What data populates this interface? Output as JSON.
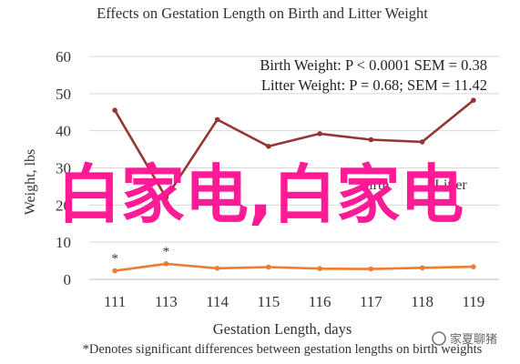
{
  "chart_data": {
    "type": "line",
    "title": "Effects on Gestation Length on Birth and Litter Weight",
    "xlabel": "Gestation Length, days",
    "ylabel": "Weight, lbs",
    "categories": [
      "111",
      "113",
      "114",
      "115",
      "116",
      "117",
      "118",
      "119"
    ],
    "ylim": [
      0,
      60
    ],
    "yticks": [
      "0",
      "10",
      "20",
      "30",
      "40",
      "50",
      "60"
    ],
    "grid": "horizontal",
    "annotations": [
      "Birth Weight: P < 0.0001 SEM = 0.38",
      "Litter Weight: P = 0.68; SEM = 11.42"
    ],
    "footnote": "*Denotes significant differences between gestation lengths on birth weights",
    "significance_markers": [
      {
        "category": "111",
        "label": "*"
      },
      {
        "category": "113",
        "label": "*"
      }
    ],
    "series": [
      {
        "name": "Birth",
        "color": "#ED7D31",
        "values": [
          2.3,
          4.2,
          3.0,
          3.3,
          2.9,
          2.8,
          3.1,
          3.4
        ]
      },
      {
        "name": "Litter",
        "color": "#943634",
        "values": [
          45.5,
          22.0,
          43.0,
          35.8,
          39.2,
          37.6,
          37.0,
          48.2
        ]
      }
    ]
  },
  "overlay": {
    "watermark_text": "白家电,白家电",
    "watermark_color": "#FF1493",
    "brand_text": "家夏聊猪"
  }
}
